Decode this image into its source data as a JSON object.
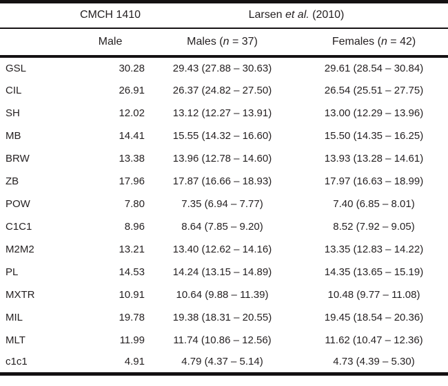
{
  "page": {
    "background": "#ffffff",
    "text_color": "#231f20",
    "rule_color": "#141112"
  },
  "table": {
    "header_row_1": {
      "cmch_label": "CMCH 1410",
      "larsen": {
        "pre": "Larsen ",
        "italic": "et al.",
        "post": " (2010)"
      }
    },
    "header_row_2": {
      "male_label": "Male",
      "males": {
        "pre": "Males (",
        "italic": "n",
        "post": " = 37)"
      },
      "females": {
        "pre": "Females (",
        "italic": "n",
        "post": " = 42)"
      }
    },
    "rows": [
      {
        "label": "GSL",
        "male": "30.28",
        "males_ci": "29.43 (27.88 – 30.63)",
        "females_ci": "29.61 (28.54 – 30.84)"
      },
      {
        "label": "CIL",
        "male": "26.91",
        "males_ci": "26.37 (24.82 – 27.50)",
        "females_ci": "26.54 (25.51 – 27.75)"
      },
      {
        "label": "SH",
        "male": "12.02",
        "males_ci": "13.12 (12.27 – 13.91)",
        "females_ci": "13.00 (12.29 – 13.96)"
      },
      {
        "label": "MB",
        "male": "14.41",
        "males_ci": "15.55 (14.32 – 16.60)",
        "females_ci": "15.50 (14.35 – 16.25)"
      },
      {
        "label": "BRW",
        "male": "13.38",
        "males_ci": "13.96 (12.78 – 14.60)",
        "females_ci": "13.93 (13.28 – 14.61)"
      },
      {
        "label": "ZB",
        "male": "17.96",
        "males_ci": "17.87 (16.66 – 18.93)",
        "females_ci": "17.97 (16.63 – 18.99)"
      },
      {
        "label": "POW",
        "male": "7.80",
        "males_ci": "7.35 (6.94 – 7.77)",
        "females_ci": "7.40 (6.85 – 8.01)"
      },
      {
        "label": "C1C1",
        "male": "8.96",
        "males_ci": "8.64 (7.85 – 9.20)",
        "females_ci": "8.52 (7.92 – 9.05)"
      },
      {
        "label": "M2M2",
        "male": "13.21",
        "males_ci": "13.40 (12.62 – 14.16)",
        "females_ci": "13.35 (12.83 – 14.22)"
      },
      {
        "label": "PL",
        "male": "14.53",
        "males_ci": "14.24 (13.15 – 14.89)",
        "females_ci": "14.35 (13.65 – 15.19)"
      },
      {
        "label": "MXTR",
        "male": "10.91",
        "males_ci": "10.64 (9.88 – 11.39)",
        "females_ci": "10.48 (9.77 – 11.08)"
      },
      {
        "label": "MIL",
        "male": "19.78",
        "males_ci": "19.38 (18.31 – 20.55)",
        "females_ci": "19.45 (18.54 – 20.36)"
      },
      {
        "label": "MLT",
        "male": "11.99",
        "males_ci": "11.74 (10.86 – 12.56)",
        "females_ci": "11.62 (10.47 – 12.36)"
      },
      {
        "label": "c1c1",
        "male": "4.91",
        "males_ci": "4.79 (4.37 – 5.14)",
        "females_ci": "4.73 (4.39 – 5.30)"
      }
    ]
  }
}
